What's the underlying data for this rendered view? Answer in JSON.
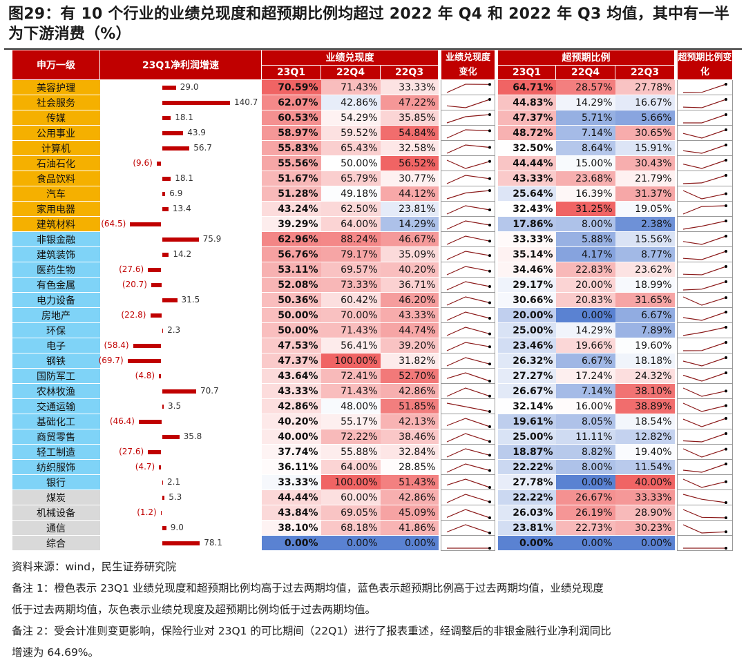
{
  "title": "图29：有 10 个行业的业绩兑现度和超预期比例均超过 2022 年 Q4 和 2022 年 Q3 均值，其中有一半为下游消费（%）",
  "table": {
    "headers": {
      "industry": "申万一级",
      "growth": "23Q1净利润增速",
      "fulfill": "业绩兑现度",
      "fulfill_change": "业绩兑现度变化",
      "beat": "超预期比例",
      "beat_change": "超预期比例变化",
      "q1": "23Q1",
      "q4": "22Q4",
      "q3": "22Q3"
    },
    "group_colors": {
      "orange": "#f5b000",
      "blue": "#7fd3f7",
      "gray": "#d9d9d9"
    },
    "rows": [
      {
        "name": "美容护理",
        "group": "orange",
        "growth": 29.0,
        "growth_label": "29.0",
        "f": [
          "70.59%",
          "71.43%",
          "33.33%"
        ],
        "b": [
          "64.71%",
          "28.57%",
          "27.78%"
        ]
      },
      {
        "name": "社会服务",
        "group": "orange",
        "growth": 140.7,
        "growth_label": "140.7",
        "f": [
          "62.07%",
          "42.86%",
          "47.22%"
        ],
        "b": [
          "44.83%",
          "14.29%",
          "16.67%"
        ]
      },
      {
        "name": "传媒",
        "group": "orange",
        "growth": 18.1,
        "growth_label": "18.1",
        "f": [
          "60.53%",
          "54.29%",
          "35.85%"
        ],
        "b": [
          "47.37%",
          "5.71%",
          "5.66%"
        ]
      },
      {
        "name": "公用事业",
        "group": "orange",
        "growth": 43.9,
        "growth_label": "43.9",
        "f": [
          "58.97%",
          "59.52%",
          "54.84%"
        ],
        "b": [
          "48.72%",
          "7.14%",
          "30.65%"
        ]
      },
      {
        "name": "计算机",
        "group": "orange",
        "growth": 56.7,
        "growth_label": "56.7",
        "f": [
          "55.83%",
          "65.43%",
          "32.58%"
        ],
        "b": [
          "32.50%",
          "8.64%",
          "15.91%"
        ]
      },
      {
        "name": "石油石化",
        "group": "orange",
        "growth": -9.6,
        "growth_label": "(9.6)",
        "f": [
          "55.56%",
          "50.00%",
          "56.52%"
        ],
        "b": [
          "44.44%",
          "15.00%",
          "30.43%"
        ]
      },
      {
        "name": "食品饮料",
        "group": "orange",
        "growth": 18.1,
        "growth_label": "18.1",
        "f": [
          "51.67%",
          "65.79%",
          "30.77%"
        ],
        "b": [
          "43.33%",
          "23.68%",
          "21.79%"
        ]
      },
      {
        "name": "汽车",
        "group": "orange",
        "growth": 6.9,
        "growth_label": "6.9",
        "f": [
          "51.28%",
          "49.18%",
          "44.12%"
        ],
        "b": [
          "25.64%",
          "16.39%",
          "31.37%"
        ]
      },
      {
        "name": "家用电器",
        "group": "orange",
        "growth": 13.4,
        "growth_label": "13.4",
        "f": [
          "43.24%",
          "62.50%",
          "23.81%"
        ],
        "b": [
          "32.43%",
          "31.25%",
          "19.05%"
        ]
      },
      {
        "name": "建筑材料",
        "group": "orange",
        "growth": -64.5,
        "growth_label": "(64.5)",
        "f": [
          "39.29%",
          "64.00%",
          "14.29%"
        ],
        "b": [
          "17.86%",
          "8.00%",
          "2.38%"
        ]
      },
      {
        "name": "非银金融",
        "group": "blue",
        "growth": 75.9,
        "growth_label": "75.9",
        "f": [
          "62.96%",
          "88.24%",
          "46.67%"
        ],
        "b": [
          "33.33%",
          "5.88%",
          "15.56%"
        ]
      },
      {
        "name": "建筑装饰",
        "group": "blue",
        "growth": 14.2,
        "growth_label": "14.2",
        "f": [
          "56.76%",
          "79.17%",
          "35.09%"
        ],
        "b": [
          "35.14%",
          "4.17%",
          "8.77%"
        ]
      },
      {
        "name": "医药生物",
        "group": "blue",
        "growth": -27.6,
        "growth_label": "(27.6)",
        "f": [
          "53.11%",
          "69.57%",
          "40.20%"
        ],
        "b": [
          "34.46%",
          "22.83%",
          "23.62%"
        ]
      },
      {
        "name": "有色金属",
        "group": "blue",
        "growth": -20.7,
        "growth_label": "(20.7)",
        "f": [
          "52.08%",
          "73.33%",
          "36.71%"
        ],
        "b": [
          "29.17%",
          "20.00%",
          "18.99%"
        ]
      },
      {
        "name": "电力设备",
        "group": "blue",
        "growth": 31.5,
        "growth_label": "31.5",
        "f": [
          "50.36%",
          "60.42%",
          "46.20%"
        ],
        "b": [
          "30.66%",
          "20.83%",
          "31.65%"
        ]
      },
      {
        "name": "房地产",
        "group": "blue",
        "growth": -22.8,
        "growth_label": "(22.8)",
        "f": [
          "50.00%",
          "70.00%",
          "43.33%"
        ],
        "b": [
          "20.00%",
          "0.00%",
          "6.67%"
        ]
      },
      {
        "name": "环保",
        "group": "blue",
        "growth": 2.3,
        "growth_label": "2.3",
        "f": [
          "50.00%",
          "71.43%",
          "44.74%"
        ],
        "b": [
          "25.00%",
          "14.29%",
          "7.89%"
        ]
      },
      {
        "name": "电子",
        "group": "blue",
        "growth": -58.4,
        "growth_label": "(58.4)",
        "f": [
          "47.53%",
          "56.41%",
          "39.20%"
        ],
        "b": [
          "23.46%",
          "19.66%",
          "19.60%"
        ]
      },
      {
        "name": "钢铁",
        "group": "blue",
        "growth": -69.7,
        "growth_label": "(69.7)",
        "f": [
          "47.37%",
          "100.00%",
          "31.82%"
        ],
        "b": [
          "26.32%",
          "6.67%",
          "18.18%"
        ]
      },
      {
        "name": "国防军工",
        "group": "blue",
        "growth": -4.8,
        "growth_label": "(4.8)",
        "f": [
          "43.64%",
          "72.41%",
          "52.70%"
        ],
        "b": [
          "27.27%",
          "17.24%",
          "24.32%"
        ]
      },
      {
        "name": "农林牧渔",
        "group": "blue",
        "growth": 70.7,
        "growth_label": "70.7",
        "f": [
          "43.33%",
          "71.43%",
          "42.86%"
        ],
        "b": [
          "26.67%",
          "7.14%",
          "38.10%"
        ]
      },
      {
        "name": "交通运输",
        "group": "blue",
        "growth": 3.5,
        "growth_label": "3.5",
        "f": [
          "42.86%",
          "48.00%",
          "51.85%"
        ],
        "b": [
          "32.14%",
          "16.00%",
          "38.89%"
        ]
      },
      {
        "name": "基础化工",
        "group": "blue",
        "growth": -46.4,
        "growth_label": "(46.4)",
        "f": [
          "40.20%",
          "55.17%",
          "42.13%"
        ],
        "b": [
          "19.61%",
          "8.05%",
          "18.54%"
        ]
      },
      {
        "name": "商贸零售",
        "group": "blue",
        "growth": 35.8,
        "growth_label": "35.8",
        "f": [
          "40.00%",
          "72.22%",
          "38.46%"
        ],
        "b": [
          "25.00%",
          "11.11%",
          "12.82%"
        ]
      },
      {
        "name": "轻工制造",
        "group": "blue",
        "growth": -27.6,
        "growth_label": "(27.6)",
        "f": [
          "37.74%",
          "55.88%",
          "32.84%"
        ],
        "b": [
          "18.87%",
          "8.82%",
          "19.40%"
        ]
      },
      {
        "name": "纺织服饰",
        "group": "blue",
        "growth": -4.7,
        "growth_label": "(4.7)",
        "f": [
          "36.11%",
          "64.00%",
          "28.85%"
        ],
        "b": [
          "22.22%",
          "8.00%",
          "11.54%"
        ]
      },
      {
        "name": "银行",
        "group": "blue",
        "growth": 2.1,
        "growth_label": "2.1",
        "f": [
          "33.33%",
          "100.00%",
          "51.43%"
        ],
        "b": [
          "27.78%",
          "0.00%",
          "40.00%"
        ]
      },
      {
        "name": "煤炭",
        "group": "gray",
        "growth": 5.3,
        "growth_label": "5.3",
        "f": [
          "44.44%",
          "60.00%",
          "42.86%"
        ],
        "b": [
          "22.22%",
          "26.67%",
          "33.33%"
        ]
      },
      {
        "name": "机械设备",
        "group": "gray",
        "growth": -1.2,
        "growth_label": "(1.2)",
        "f": [
          "43.84%",
          "69.05%",
          "45.09%"
        ],
        "b": [
          "26.03%",
          "26.19%",
          "28.90%"
        ]
      },
      {
        "name": "通信",
        "group": "gray",
        "growth": 9.0,
        "growth_label": "9.0",
        "f": [
          "38.10%",
          "68.18%",
          "41.86%"
        ],
        "b": [
          "23.81%",
          "22.73%",
          "30.23%"
        ]
      },
      {
        "name": "综合",
        "group": "gray",
        "growth": 78.1,
        "growth_label": "78.1",
        "f": [
          "0.00%",
          "0.00%",
          "0.00%"
        ],
        "b": [
          "0.00%",
          "0.00%",
          "0.00%"
        ]
      }
    ]
  },
  "notes": [
    "资料来源：wind，民生证券研究院",
    "备注 1：橙色表示 23Q1 业绩兑现度和超预期比例均高于过去两期均值，蓝色表示超预期比例高于过去两期均值，业绩兑现度",
    "低于过去两期均值，灰色表示业绩兑现度及超预期比例均低于过去两期均值。",
    "备注 2：受会计准则变更影响，保险行业对 23Q1 的可比期间（22Q1）进行了报表重述，经调整后的非银金融行业净利润同比",
    "增速为 64.69%。"
  ]
}
